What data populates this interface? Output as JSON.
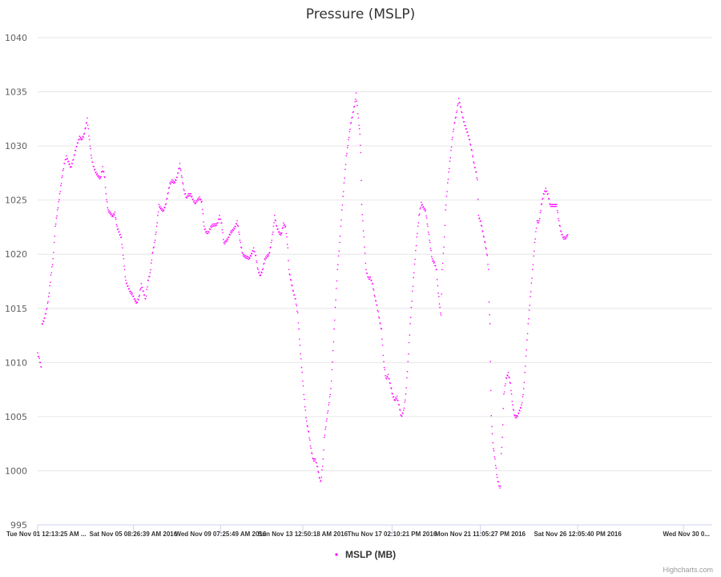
{
  "chart_data": {
    "type": "scatter",
    "title": "Pressure (MSLP)",
    "xlabel": "",
    "ylabel": "",
    "ylim": [
      995,
      1040
    ],
    "yticks": [
      "995",
      "1000",
      "1005",
      "1010",
      "1015",
      "1020",
      "1025",
      "1030",
      "1035",
      "1040"
    ],
    "xtick_labels": [
      "Tue Nov 01 12:13:25 AM ...",
      "Sat Nov 05 08:26:39 AM 2016",
      "Wed Nov 09 07:25:49 AM 2016",
      "Sun Nov 13 12:50:18 AM 2016",
      "Thu Nov 17 02:10:21 PM 2016",
      "Mon Nov 21 11:05:27 PM 2016",
      "Sat Nov 26 12:05:40 PM 2016",
      "Wed Nov 30 0..."
    ],
    "xlim_days": [
      0,
      30.6
    ],
    "xtick_days": [
      0,
      4.34,
      8.3,
      12.03,
      16.08,
      20.08,
      24.5,
      29.3
    ],
    "grid": "horizontal",
    "legend": "bottom-center",
    "series": [
      {
        "name": "MSLP (MB)",
        "color": "#ff00ff",
        "points": [
          [
            0.0,
            1010.8
          ],
          [
            0.08,
            1010.3
          ],
          [
            0.17,
            1009.5
          ],
          [
            0.2,
            1013.5
          ],
          [
            0.3,
            1014.0
          ],
          [
            0.4,
            1014.8
          ],
          [
            0.5,
            1016.0
          ],
          [
            0.6,
            1018.0
          ],
          [
            0.7,
            1019.5
          ],
          [
            0.8,
            1022.5
          ],
          [
            0.9,
            1024.0
          ],
          [
            1.0,
            1025.5
          ],
          [
            1.1,
            1027.0
          ],
          [
            1.2,
            1028.3
          ],
          [
            1.3,
            1029.0
          ],
          [
            1.4,
            1028.5
          ],
          [
            1.5,
            1028.0
          ],
          [
            1.6,
            1028.6
          ],
          [
            1.7,
            1029.5
          ],
          [
            1.8,
            1030.2
          ],
          [
            1.9,
            1030.8
          ],
          [
            2.0,
            1030.6
          ],
          [
            2.1,
            1031.0
          ],
          [
            2.2,
            1032.0
          ],
          [
            2.25,
            1032.5
          ],
          [
            2.35,
            1030.5
          ],
          [
            2.45,
            1028.8
          ],
          [
            2.55,
            1028.0
          ],
          [
            2.65,
            1027.5
          ],
          [
            2.75,
            1027.2
          ],
          [
            2.85,
            1027.0
          ],
          [
            2.95,
            1028.0
          ],
          [
            3.05,
            1027.0
          ],
          [
            3.1,
            1025.5
          ],
          [
            3.2,
            1024.0
          ],
          [
            3.3,
            1023.8
          ],
          [
            3.4,
            1023.5
          ],
          [
            3.5,
            1023.8
          ],
          [
            3.6,
            1022.5
          ],
          [
            3.7,
            1022.0
          ],
          [
            3.8,
            1021.5
          ],
          [
            3.9,
            1019.5
          ],
          [
            4.0,
            1017.5
          ],
          [
            4.1,
            1017.0
          ],
          [
            4.2,
            1016.5
          ],
          [
            4.3,
            1016.3
          ],
          [
            4.4,
            1015.8
          ],
          [
            4.5,
            1015.5
          ],
          [
            4.6,
            1016.0
          ],
          [
            4.7,
            1017.2
          ],
          [
            4.8,
            1016.5
          ],
          [
            4.9,
            1015.8
          ],
          [
            5.0,
            1017.5
          ],
          [
            5.1,
            1018.2
          ],
          [
            5.2,
            1020.0
          ],
          [
            5.3,
            1021.0
          ],
          [
            5.4,
            1022.5
          ],
          [
            5.5,
            1024.5
          ],
          [
            5.6,
            1024.2
          ],
          [
            5.7,
            1024.0
          ],
          [
            5.8,
            1024.5
          ],
          [
            5.9,
            1025.5
          ],
          [
            6.0,
            1026.5
          ],
          [
            6.1,
            1026.8
          ],
          [
            6.2,
            1026.6
          ],
          [
            6.3,
            1027.0
          ],
          [
            6.4,
            1027.8
          ],
          [
            6.45,
            1028.3
          ],
          [
            6.55,
            1027.0
          ],
          [
            6.65,
            1025.8
          ],
          [
            6.75,
            1025.2
          ],
          [
            6.85,
            1025.5
          ],
          [
            6.95,
            1025.5
          ],
          [
            7.05,
            1025.0
          ],
          [
            7.15,
            1024.7
          ],
          [
            7.25,
            1025.0
          ],
          [
            7.35,
            1025.2
          ],
          [
            7.45,
            1024.8
          ],
          [
            7.55,
            1022.5
          ],
          [
            7.65,
            1022.0
          ],
          [
            7.75,
            1022.0
          ],
          [
            7.85,
            1022.5
          ],
          [
            7.95,
            1022.7
          ],
          [
            8.05,
            1022.7
          ],
          [
            8.15,
            1022.8
          ],
          [
            8.25,
            1023.5
          ],
          [
            8.35,
            1022.8
          ],
          [
            8.45,
            1021.0
          ],
          [
            8.55,
            1021.2
          ],
          [
            8.65,
            1021.5
          ],
          [
            8.75,
            1022.0
          ],
          [
            8.85,
            1022.2
          ],
          [
            8.95,
            1022.5
          ],
          [
            9.05,
            1023.0
          ],
          [
            9.1,
            1022.5
          ],
          [
            9.2,
            1021.0
          ],
          [
            9.3,
            1020.0
          ],
          [
            9.4,
            1019.8
          ],
          [
            9.5,
            1019.7
          ],
          [
            9.6,
            1019.6
          ],
          [
            9.7,
            1020.0
          ],
          [
            9.8,
            1020.5
          ],
          [
            9.9,
            1019.8
          ],
          [
            10.0,
            1018.5
          ],
          [
            10.1,
            1018.0
          ],
          [
            10.2,
            1018.5
          ],
          [
            10.3,
            1019.5
          ],
          [
            10.4,
            1019.8
          ],
          [
            10.5,
            1020.0
          ],
          [
            10.6,
            1021.0
          ],
          [
            10.7,
            1022.5
          ],
          [
            10.75,
            1023.5
          ],
          [
            10.85,
            1022.5
          ],
          [
            10.95,
            1022.0
          ],
          [
            11.05,
            1021.8
          ],
          [
            11.15,
            1022.8
          ],
          [
            11.25,
            1022.5
          ],
          [
            11.35,
            1020.5
          ],
          [
            11.4,
            1018.5
          ],
          [
            11.5,
            1017.5
          ],
          [
            11.6,
            1016.5
          ],
          [
            11.7,
            1015.8
          ],
          [
            11.8,
            1014.5
          ],
          [
            11.9,
            1011.5
          ],
          [
            12.0,
            1009.0
          ],
          [
            12.1,
            1006.5
          ],
          [
            12.2,
            1004.5
          ],
          [
            12.3,
            1003.5
          ],
          [
            12.4,
            1002.0
          ],
          [
            12.5,
            1001.0
          ],
          [
            12.6,
            1001.0
          ],
          [
            12.7,
            1000.3
          ],
          [
            12.8,
            999.2
          ],
          [
            12.85,
            999.0
          ],
          [
            12.95,
            1001.0
          ],
          [
            13.0,
            1003.0
          ],
          [
            13.1,
            1004.5
          ],
          [
            13.2,
            1006.0
          ],
          [
            13.3,
            1007.5
          ],
          [
            13.4,
            1011.0
          ],
          [
            13.5,
            1015.0
          ],
          [
            13.6,
            1018.5
          ],
          [
            13.7,
            1021.0
          ],
          [
            13.8,
            1024.0
          ],
          [
            13.9,
            1026.5
          ],
          [
            14.0,
            1029.0
          ],
          [
            14.1,
            1030.5
          ],
          [
            14.2,
            1032.0
          ],
          [
            14.3,
            1033.0
          ],
          [
            14.4,
            1034.0
          ],
          [
            14.45,
            1034.8
          ],
          [
            14.55,
            1032.5
          ],
          [
            14.62,
            1031.0
          ],
          [
            14.66,
            1029.3
          ],
          [
            14.7,
            1024.5
          ],
          [
            14.8,
            1021.5
          ],
          [
            14.9,
            1018.5
          ],
          [
            15.0,
            1017.8
          ],
          [
            15.1,
            1017.8
          ],
          [
            15.2,
            1017.2
          ],
          [
            15.3,
            1016.0
          ],
          [
            15.4,
            1015.2
          ],
          [
            15.5,
            1014.0
          ],
          [
            15.6,
            1013.0
          ],
          [
            15.7,
            1010.0
          ],
          [
            15.8,
            1008.5
          ],
          [
            15.9,
            1008.8
          ],
          [
            16.0,
            1008.0
          ],
          [
            16.1,
            1007.0
          ],
          [
            16.2,
            1006.5
          ],
          [
            16.3,
            1006.8
          ],
          [
            16.4,
            1006.0
          ],
          [
            16.5,
            1005.0
          ],
          [
            16.6,
            1005.5
          ],
          [
            16.7,
            1007.0
          ],
          [
            16.8,
            1010.0
          ],
          [
            16.9,
            1013.5
          ],
          [
            17.0,
            1016.5
          ],
          [
            17.1,
            1019.0
          ],
          [
            17.2,
            1021.5
          ],
          [
            17.3,
            1023.5
          ],
          [
            17.4,
            1024.7
          ],
          [
            17.5,
            1024.3
          ],
          [
            17.6,
            1024.0
          ],
          [
            17.7,
            1022.5
          ],
          [
            17.8,
            1021.0
          ],
          [
            17.9,
            1019.5
          ],
          [
            18.0,
            1019.2
          ],
          [
            18.1,
            1018.5
          ],
          [
            18.15,
            1017.0
          ],
          [
            18.25,
            1015.0
          ],
          [
            18.3,
            1014.3
          ],
          [
            18.35,
            1018.5
          ],
          [
            18.45,
            1021.5
          ],
          [
            18.5,
            1024.0
          ],
          [
            18.6,
            1026.5
          ],
          [
            18.7,
            1028.5
          ],
          [
            18.8,
            1030.5
          ],
          [
            18.9,
            1032.0
          ],
          [
            19.0,
            1033.0
          ],
          [
            19.1,
            1034.3
          ],
          [
            19.2,
            1033.5
          ],
          [
            19.3,
            1032.5
          ],
          [
            19.4,
            1031.8
          ],
          [
            19.5,
            1031.2
          ],
          [
            19.6,
            1030.5
          ],
          [
            19.7,
            1029.5
          ],
          [
            19.8,
            1028.3
          ],
          [
            19.9,
            1027.5
          ],
          [
            19.95,
            1026.8
          ],
          [
            20.0,
            1023.5
          ],
          [
            20.1,
            1023.0
          ],
          [
            20.2,
            1022.0
          ],
          [
            20.3,
            1021.0
          ],
          [
            20.4,
            1019.8
          ],
          [
            20.45,
            1018.5
          ],
          [
            20.48,
            1015.5
          ],
          [
            20.52,
            1013.5
          ],
          [
            20.54,
            1010.0
          ],
          [
            20.58,
            1005.0
          ],
          [
            20.65,
            1002.5
          ],
          [
            20.75,
            1001.0
          ],
          [
            20.85,
            999.3
          ],
          [
            20.95,
            998.5
          ],
          [
            21.0,
            998.5
          ],
          [
            21.03,
            1001.5
          ],
          [
            21.08,
            1003.0
          ],
          [
            21.15,
            1007.0
          ],
          [
            21.25,
            1008.5
          ],
          [
            21.35,
            1009.0
          ],
          [
            21.45,
            1008.0
          ],
          [
            21.55,
            1006.0
          ],
          [
            21.65,
            1005.0
          ],
          [
            21.75,
            1005.0
          ],
          [
            21.85,
            1005.5
          ],
          [
            21.95,
            1006.0
          ],
          [
            22.05,
            1007.5
          ],
          [
            22.15,
            1010.5
          ],
          [
            22.25,
            1013.5
          ],
          [
            22.35,
            1016.0
          ],
          [
            22.45,
            1018.5
          ],
          [
            22.55,
            1021.0
          ],
          [
            22.65,
            1023.0
          ],
          [
            22.75,
            1023.0
          ],
          [
            22.85,
            1024.5
          ],
          [
            22.95,
            1025.5
          ],
          [
            23.05,
            1026.0
          ],
          [
            23.15,
            1025.5
          ],
          [
            23.25,
            1024.5
          ],
          [
            23.35,
            1024.5
          ],
          [
            23.45,
            1024.5
          ],
          [
            23.55,
            1024.5
          ],
          [
            23.65,
            1023.0
          ],
          [
            23.75,
            1022.0
          ],
          [
            23.85,
            1021.5
          ],
          [
            23.95,
            1021.5
          ],
          [
            24.05,
            1021.8
          ]
        ]
      }
    ]
  },
  "legend": {
    "label": "MSLP (MB)"
  },
  "credits": "Highcharts.com"
}
